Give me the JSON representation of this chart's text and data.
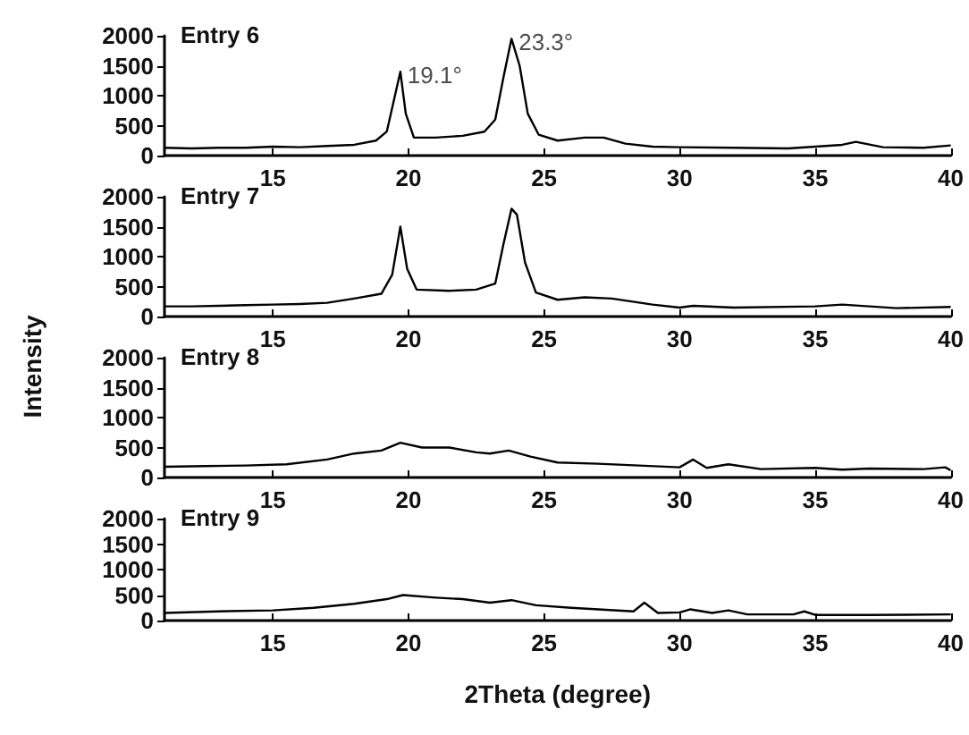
{
  "chart_data": [
    {
      "type": "line",
      "title": "Entry 6",
      "x": [
        11,
        12,
        13,
        14,
        15,
        16,
        17,
        18,
        18.8,
        19.2,
        19.45,
        19.7,
        19.9,
        20.2,
        21,
        22,
        22.8,
        23.2,
        23.5,
        23.8,
        24.1,
        24.4,
        24.8,
        25.5,
        26.5,
        27.2,
        28,
        29,
        30,
        32,
        34,
        36,
        36.5,
        37.5,
        39,
        40
      ],
      "series": [
        {
          "color": "#000000",
          "values": [
            130,
            120,
            130,
            130,
            150,
            140,
            160,
            180,
            250,
            400,
            900,
            1400,
            700,
            300,
            300,
            330,
            400,
            600,
            1300,
            1950,
            1500,
            700,
            350,
            250,
            300,
            300,
            200,
            150,
            140,
            130,
            120,
            180,
            230,
            140,
            130,
            170
          ]
        }
      ],
      "xlim": [
        11,
        40
      ],
      "xticks": [
        15,
        20,
        25,
        30,
        35,
        40
      ],
      "ylim": [
        0,
        2000
      ],
      "yticks": [
        0,
        500,
        1000,
        1500,
        2000
      ],
      "grid": false,
      "marker": "none",
      "line_style": "solid",
      "annotations": [
        {
          "text": "19.1°",
          "x": 19.7,
          "y": 1400
        },
        {
          "text": "23.3°",
          "x": 23.8,
          "y": 1950
        }
      ]
    },
    {
      "type": "line",
      "title": "Entry 7",
      "ylabel": "Intensity",
      "x": [
        11,
        12,
        13,
        14,
        15,
        16,
        17,
        18,
        19,
        19.4,
        19.7,
        19.95,
        20.3,
        21.5,
        22.5,
        23.2,
        23.5,
        23.8,
        24,
        24.3,
        24.7,
        25.5,
        26.5,
        27.5,
        29,
        30,
        30.5,
        32,
        35,
        36,
        38,
        40
      ],
      "series": [
        {
          "color": "#000000",
          "values": [
            170,
            170,
            180,
            190,
            200,
            210,
            230,
            300,
            380,
            700,
            1500,
            800,
            450,
            430,
            450,
            550,
            1200,
            1800,
            1700,
            900,
            400,
            280,
            320,
            300,
            200,
            150,
            180,
            150,
            170,
            200,
            140,
            160
          ]
        }
      ],
      "xlim": [
        11,
        40
      ],
      "xticks": [
        15,
        20,
        25,
        30,
        35,
        40
      ],
      "ylim": [
        0,
        2000
      ],
      "yticks": [
        0,
        500,
        1000,
        1500,
        2000
      ],
      "grid": false,
      "marker": "none",
      "line_style": "solid"
    },
    {
      "type": "line",
      "title": "Entry 8",
      "x": [
        11,
        12.5,
        14,
        15.5,
        17,
        18,
        19,
        19.7,
        20.5,
        21.5,
        22.5,
        23,
        23.7,
        24.5,
        25.5,
        27,
        28.5,
        30,
        30.5,
        31,
        31.8,
        33,
        35,
        36,
        37,
        39,
        39.8,
        40
      ],
      "series": [
        {
          "color": "#000000",
          "values": [
            180,
            190,
            200,
            220,
            300,
            400,
            450,
            580,
            500,
            500,
            420,
            400,
            450,
            350,
            250,
            230,
            200,
            170,
            300,
            160,
            220,
            140,
            160,
            130,
            150,
            140,
            170,
            120
          ]
        }
      ],
      "xlim": [
        11,
        40
      ],
      "xticks": [
        15,
        20,
        25,
        30,
        35,
        40
      ],
      "ylim": [
        0,
        2000
      ],
      "yticks": [
        0,
        500,
        1000,
        1500,
        2000
      ],
      "grid": false,
      "marker": "none",
      "line_style": "solid"
    },
    {
      "type": "line",
      "title": "Entry 9",
      "xlabel": "2Theta (degree)",
      "x": [
        11,
        13,
        15,
        16.5,
        18,
        19.2,
        19.8,
        21,
        22,
        23,
        23.8,
        24.7,
        26,
        27,
        28.3,
        28.7,
        29.2,
        30,
        30.4,
        31.2,
        31.8,
        32.5,
        34.2,
        34.6,
        35,
        37,
        40
      ],
      "series": [
        {
          "color": "#000000",
          "values": [
            150,
            180,
            200,
            250,
            330,
            420,
            500,
            450,
            420,
            350,
            400,
            300,
            250,
            220,
            180,
            350,
            150,
            160,
            220,
            150,
            200,
            120,
            120,
            180,
            110,
            110,
            120
          ]
        }
      ],
      "xlim": [
        11,
        40
      ],
      "xticks": [
        15,
        20,
        25,
        30,
        35,
        40
      ],
      "ylim": [
        0,
        2000
      ],
      "yticks": [
        0,
        500,
        1000,
        1500,
        2000
      ],
      "grid": false,
      "marker": "none",
      "line_style": "solid"
    }
  ]
}
